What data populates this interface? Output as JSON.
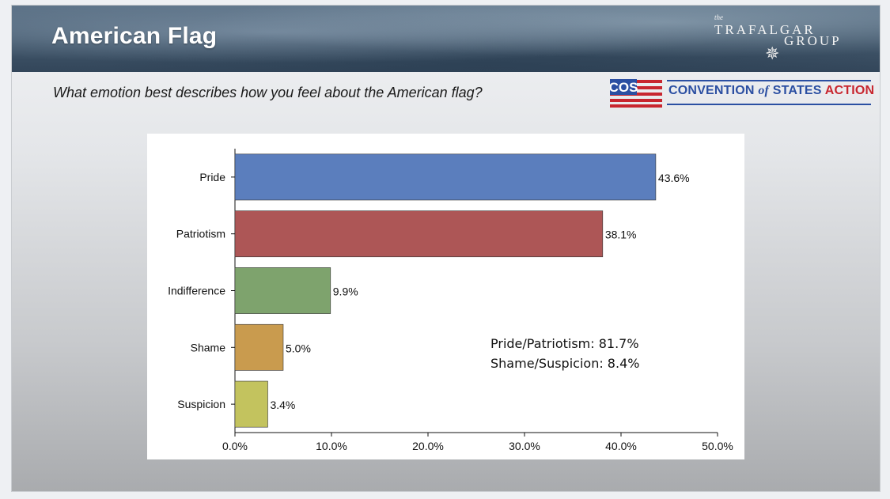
{
  "header": {
    "title": "American Flag",
    "brand": {
      "the": "the",
      "word1": "TRAFALGAR",
      "word2": "GROUP"
    }
  },
  "question": "What emotion best describes how you feel about the American flag?",
  "sponsor": {
    "mark": "COS",
    "name_part1": "CONVENTION",
    "name_of": "of",
    "name_part2": "STATES",
    "name_part3": "ACTION",
    "colors": {
      "blue": "#2b4fa2",
      "red": "#c8262f"
    }
  },
  "chart_data": {
    "type": "bar",
    "orientation": "horizontal",
    "categories": [
      "Pride",
      "Patriotism",
      "Indifference",
      "Shame",
      "Suspicion"
    ],
    "values": [
      43.6,
      38.1,
      9.9,
      5.0,
      3.4
    ],
    "data_labels": [
      "43.6%",
      "38.1%",
      "9.9%",
      "5.0%",
      "3.4%"
    ],
    "colors": [
      "#5b7ebd",
      "#ad5656",
      "#7ea36d",
      "#c99b4e",
      "#c3c35e"
    ],
    "xlim": [
      0,
      50
    ],
    "x_ticks": [
      0,
      10,
      20,
      30,
      40,
      50
    ],
    "x_tick_labels": [
      "0.0%",
      "10.0%",
      "20.0%",
      "30.0%",
      "40.0%",
      "50.0%"
    ],
    "title": "",
    "xlabel": "",
    "ylabel": "",
    "grid": false,
    "annotations": [
      "Pride/Patriotism: 81.7%",
      "Shame/Suspicion: 8.4%"
    ]
  }
}
